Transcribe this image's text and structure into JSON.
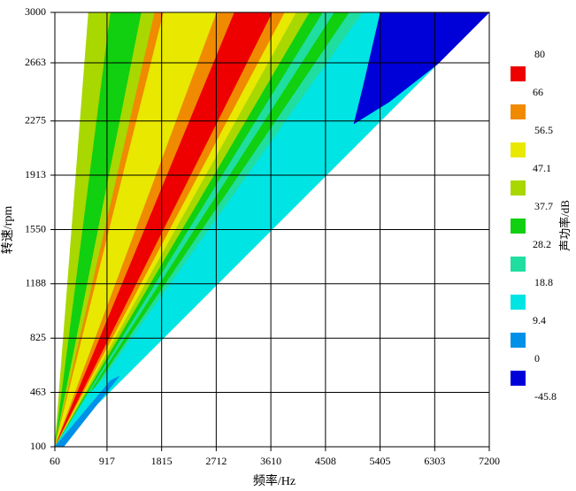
{
  "chart_data": {
    "type": "contour",
    "xlabel": "频率/Hz",
    "ylabel": "转速/rpm",
    "xlim": [
      60,
      7200
    ],
    "ylim": [
      100,
      3000
    ],
    "xticks": [
      60,
      917,
      1815,
      2712,
      3610,
      4508,
      5405,
      6303,
      7200
    ],
    "yticks": [
      100,
      463,
      825,
      1188,
      1550,
      1913,
      2275,
      2663,
      3000
    ],
    "grid": true,
    "colorbar": {
      "label": "声功率/dB",
      "levels": [
        80,
        66,
        56.5,
        47.1,
        37.7,
        28.2,
        18.8,
        9.4,
        0,
        -45.8
      ],
      "colors": [
        "#ee0000",
        "#f08a00",
        "#e8e800",
        "#a8d800",
        "#10d010",
        "#20dda0",
        "#00e4e4",
        "#0090e8",
        "#0000d8"
      ]
    },
    "regions": [
      {
        "level": 37.7,
        "x": [
          60,
          613,
          976
        ],
        "y": [
          100,
          3000,
          3000
        ]
      },
      {
        "level": 28.2,
        "x": [
          60,
          976,
          1485
        ],
        "y": [
          100,
          3000,
          3000
        ]
      },
      {
        "level": 37.7,
        "x": [
          60,
          1485,
          1703
        ],
        "y": [
          100,
          3000,
          3000
        ]
      },
      {
        "level": 56.5,
        "x": [
          60,
          1703,
          1849
        ],
        "y": [
          100,
          3000,
          3000
        ]
      },
      {
        "level": 47.1,
        "x": [
          60,
          1849,
          2721
        ],
        "y": [
          100,
          3000,
          3000
        ]
      },
      {
        "level": 56.5,
        "x": [
          60,
          2721,
          3012
        ],
        "y": [
          100,
          3000,
          3000
        ]
      },
      {
        "level": 66,
        "x": [
          60,
          3012,
          3637
        ],
        "y": [
          100,
          3000,
          3000
        ]
      },
      {
        "level": 56.5,
        "x": [
          60,
          3637,
          3841
        ],
        "y": [
          100,
          3000,
          3000
        ]
      },
      {
        "level": 47.1,
        "x": [
          60,
          3841,
          4030
        ],
        "y": [
          100,
          3000,
          3000
        ]
      },
      {
        "level": 37.7,
        "x": [
          60,
          4030,
          4248
        ],
        "y": [
          100,
          3000,
          3000
        ]
      },
      {
        "level": 28.2,
        "x": [
          60,
          4248,
          4466
        ],
        "y": [
          100,
          3000,
          3000
        ]
      },
      {
        "level": 18.8,
        "x": [
          60,
          4466,
          4655
        ],
        "y": [
          100,
          3000,
          3000
        ]
      },
      {
        "level": 28.2,
        "x": [
          60,
          4655,
          4902
        ],
        "y": [
          100,
          3000,
          3000
        ]
      },
      {
        "level": 18.8,
        "x": [
          60,
          4902,
          5120
        ],
        "y": [
          100,
          3000,
          3000
        ]
      },
      {
        "level": 9.4,
        "x": [
          60,
          5120,
          7200
        ],
        "y": [
          100,
          3000,
          3000
        ]
      },
      {
        "level": -45.8,
        "x": [
          5411,
          7200,
          6357,
          5557,
          4975,
          5120
        ],
        "y": [
          3000,
          3000,
          2657,
          2403,
          2256,
          2492
        ]
      },
      {
        "level": 9.4,
        "x": [
          60,
          2649,
          2067,
          613
        ],
        "y": [
          100,
          1151,
          1015,
          454
        ]
      },
      {
        "level": 0,
        "x": [
          60,
          976,
          1122,
          205
        ],
        "y": [
          100,
          543,
          572,
          100
        ]
      }
    ]
  }
}
